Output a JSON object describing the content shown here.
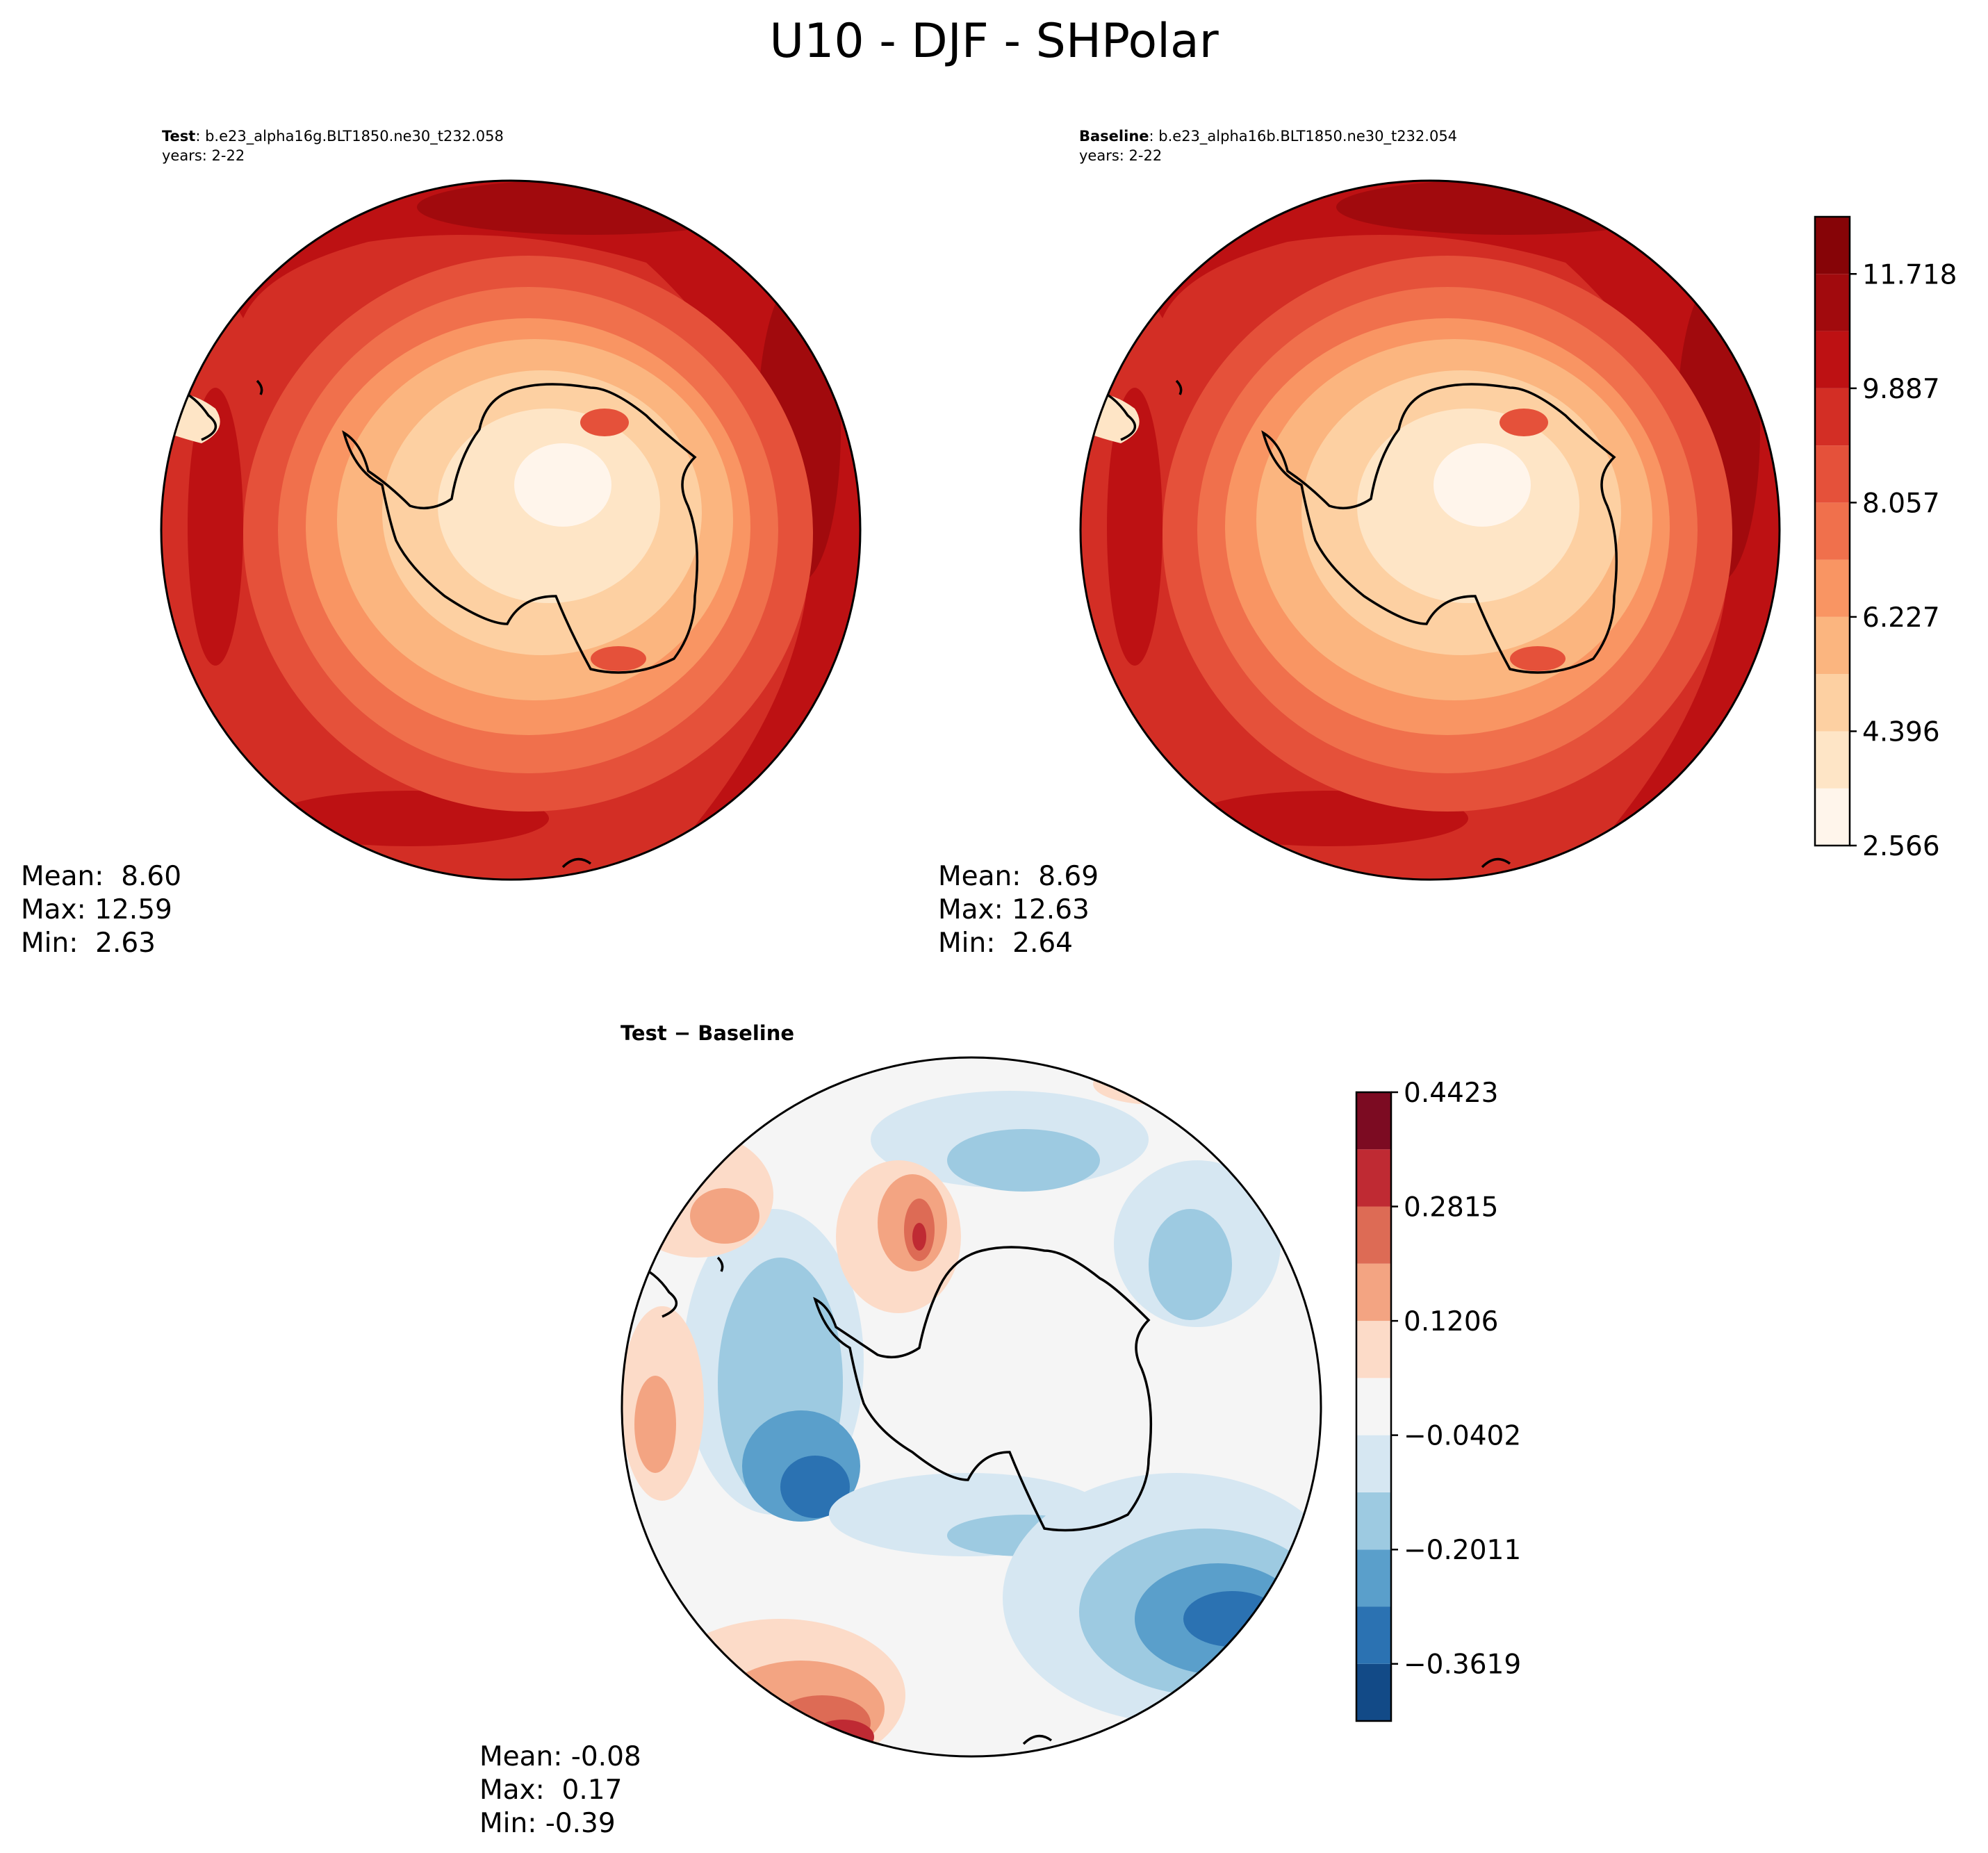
{
  "figure": {
    "title": "U10 - DJF - SHPolar"
  },
  "test_panel": {
    "label_bold": "Test",
    "case_name": ": b.e23_alpha16g.BLT1850.ne30_t232.058",
    "years": "years: 2-22",
    "mean": "Mean:  8.60",
    "max": "Max: 12.59",
    "min": "Min:  2.63"
  },
  "baseline_panel": {
    "label_bold": "Baseline",
    "case_name": ": b.e23_alpha16b.BLT1850.ne30_t232.054",
    "years": "years: 2-22",
    "mean": "Mean:  8.69",
    "max": "Max: 12.63",
    "min": "Min:  2.64"
  },
  "diff_panel": {
    "title": "Test − Baseline",
    "mean": "Mean: -0.08",
    "max": "Max:  0.17",
    "min": "Min: -0.39"
  },
  "chart_data": [
    {
      "type": "heatmap",
      "projection": "south-polar-stereographic",
      "variable": "U10",
      "season": "DJF",
      "panel": "test",
      "stats": {
        "mean": 8.6,
        "max": 12.59,
        "min": 2.63
      }
    },
    {
      "type": "heatmap",
      "projection": "south-polar-stereographic",
      "variable": "U10",
      "season": "DJF",
      "panel": "baseline",
      "stats": {
        "mean": 8.69,
        "max": 12.63,
        "min": 2.64
      }
    },
    {
      "type": "heatmap",
      "projection": "south-polar-stereographic",
      "variable": "U10",
      "season": "DJF",
      "panel": "difference",
      "stats": {
        "mean": -0.08,
        "max": 0.17,
        "min": -0.39
      }
    }
  ],
  "colorbar_main": {
    "levels": [
      2.566,
      3.481,
      4.396,
      5.311,
      6.227,
      7.142,
      8.057,
      8.972,
      9.887,
      10.802,
      11.718,
      12.633
    ],
    "tick_labels": [
      "2.566",
      "4.396",
      "6.227",
      "8.057",
      "9.887",
      "11.718"
    ],
    "tick_values": [
      2.566,
      4.396,
      6.227,
      8.057,
      9.887,
      11.718
    ],
    "colors": [
      "#fff5eb",
      "#fee5c6",
      "#fdd0a2",
      "#fbb57f",
      "#f99563",
      "#f0704c",
      "#e5513a",
      "#d32e25",
      "#bd1113",
      "#a10a0d",
      "#860407"
    ]
  },
  "colorbar_diff": {
    "levels": [
      -0.4423,
      -0.3619,
      -0.2815,
      -0.2011,
      -0.1206,
      -0.0402,
      0.0402,
      0.1206,
      0.2011,
      0.2815,
      0.3619,
      0.4423
    ],
    "tick_labels": [
      "−0.3619",
      "−0.2011",
      "−0.0402",
      "0.1206",
      "0.2815",
      "0.4423"
    ],
    "tick_values": [
      -0.3619,
      -0.2011,
      -0.0402,
      0.1206,
      0.2815,
      0.4423
    ],
    "colors": [
      "#124a87",
      "#2b72b2",
      "#5a9fcb",
      "#9dcae1",
      "#d6e7f2",
      "#f5f5f5",
      "#fcdbc8",
      "#f3a482",
      "#dd6b55",
      "#bf2a33",
      "#7c0b22"
    ]
  }
}
